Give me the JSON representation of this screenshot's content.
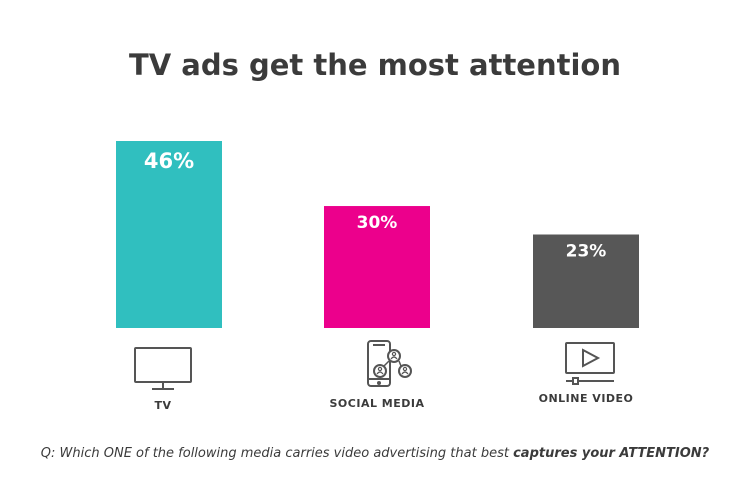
{
  "chart_data": {
    "type": "bar",
    "title": "TV ads get the most attention",
    "categories": [
      "TV",
      "SOCIAL MEDIA",
      "ONLINE VIDEO"
    ],
    "values": [
      46,
      30,
      23
    ],
    "value_labels": [
      "46%",
      "30%",
      "23%"
    ],
    "colors": [
      "#30bfbf",
      "#ec008c",
      "#575757"
    ],
    "icons": [
      "tv-icon",
      "smartphone-social-icon",
      "video-player-icon"
    ],
    "ylim": [
      0,
      46
    ],
    "grid": false,
    "legend": "none"
  },
  "footnote": {
    "prefix": "Q: Which ONE of the following media carries video advertising that best ",
    "emphasis": "captures your ATTENTION?"
  }
}
